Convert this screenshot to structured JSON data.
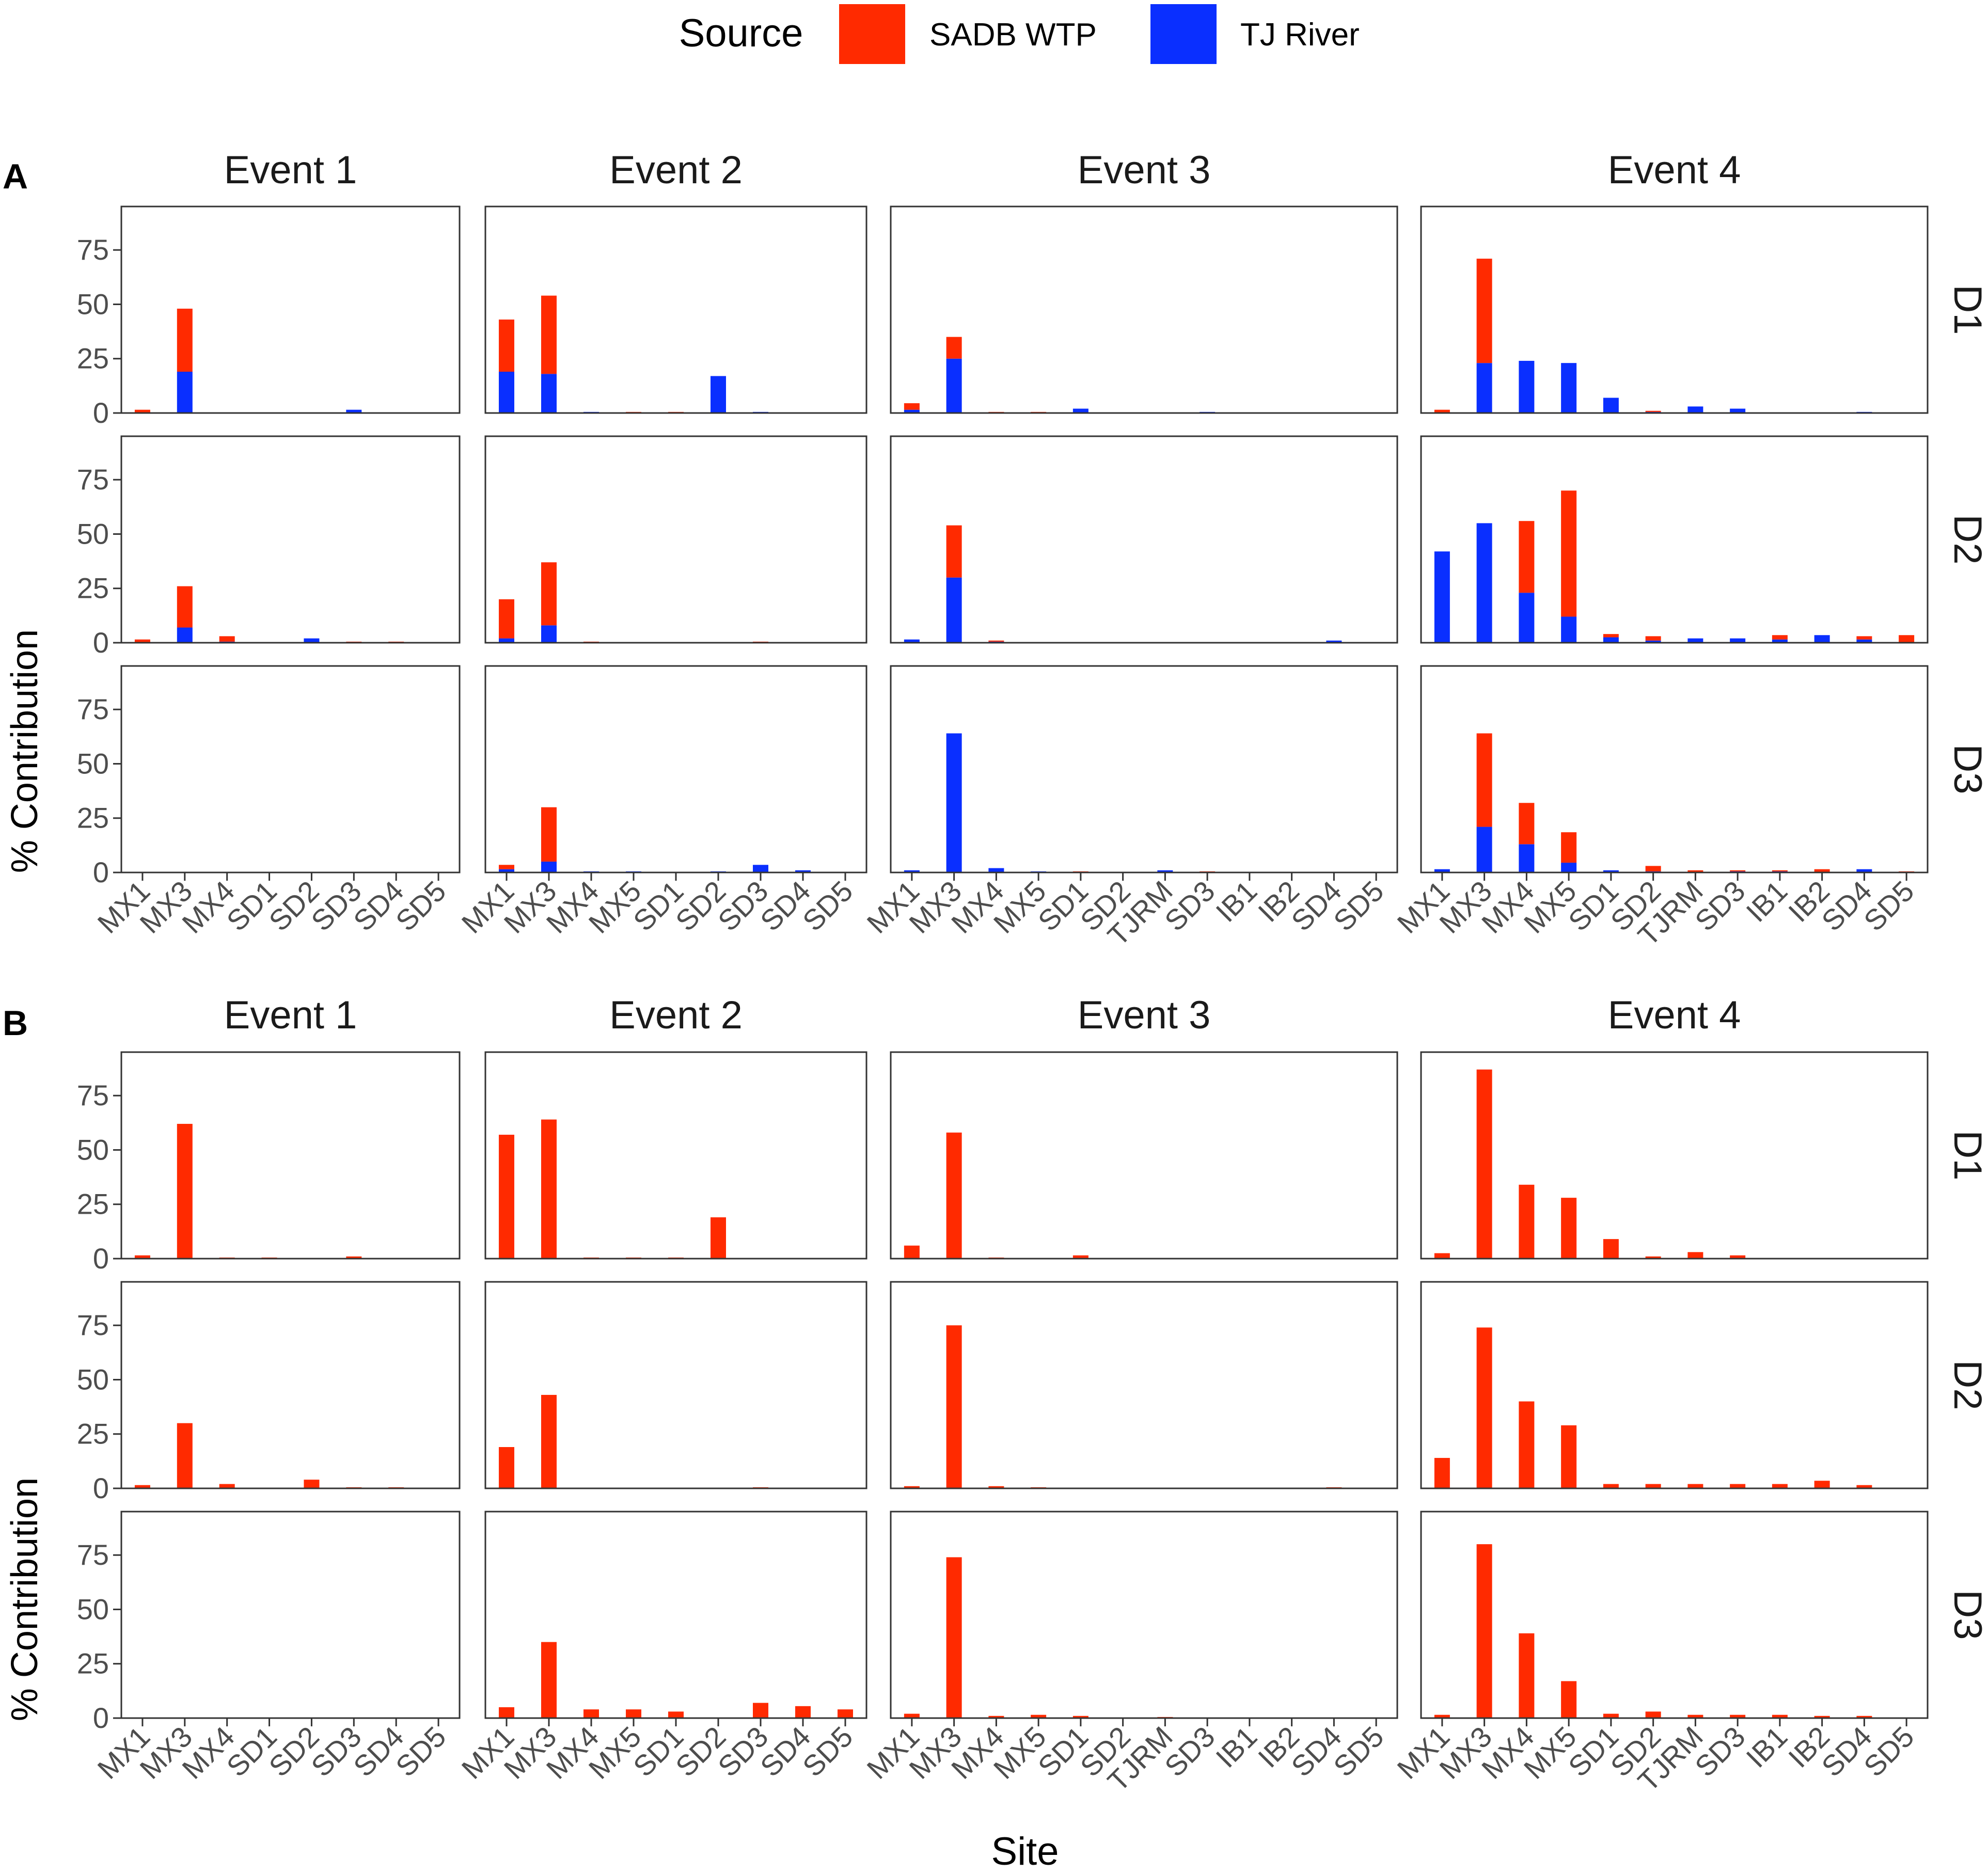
{
  "figure": {
    "legend": {
      "title": "Source",
      "position": "top-center"
    },
    "y_axis_label": "% Contribution",
    "x_axis_label": "Site",
    "panel_labels": [
      "A",
      "B"
    ],
    "events": [
      "Event 1",
      "Event 2",
      "Event 3",
      "Event 4"
    ],
    "depths": [
      "D1",
      "D2",
      "D3"
    ],
    "y_ticks": [
      "0",
      "25",
      "50",
      "75"
    ]
  },
  "chart_data": {
    "type": "bar",
    "stacked": true,
    "ylim": [
      0,
      95
    ],
    "series": [
      {
        "name": "SADB WTP",
        "color": "#ff2a00"
      },
      {
        "name": "TJ River",
        "color": "#0a2fff"
      }
    ],
    "site_sets": [
      [
        "MX1",
        "MX3",
        "MX4",
        "SD1",
        "SD2",
        "SD3",
        "SD4",
        "SD5"
      ],
      [
        "MX1",
        "MX3",
        "MX4",
        "MX5",
        "SD1",
        "SD2",
        "SD3",
        "SD4",
        "SD5"
      ],
      [
        "MX1",
        "MX3",
        "MX4",
        "MX5",
        "SD1",
        "SD2",
        "TJRM",
        "SD3",
        "IB1",
        "IB2",
        "SD4",
        "SD5"
      ],
      [
        "MX1",
        "MX3",
        "MX4",
        "MX5",
        "SD1",
        "SD2",
        "TJRM",
        "SD3",
        "IB1",
        "IB2",
        "SD4",
        "SD5"
      ]
    ],
    "panels": [
      {
        "label": "A",
        "facets": [
          [
            {
              "sadb": [
                1.5,
                29,
                0.3,
                0,
                0,
                0,
                0,
                0
              ],
              "tj": [
                0,
                19,
                0,
                0,
                0,
                1.5,
                0,
                0
              ]
            },
            {
              "sadb": [
                24,
                36,
                0,
                0.5,
                0.5,
                0,
                0,
                0,
                0
              ],
              "tj": [
                19,
                18,
                0.5,
                0,
                0,
                17,
                0.5,
                0,
                0
              ]
            },
            {
              "sadb": [
                3,
                10,
                0.5,
                0.5,
                0,
                0,
                0,
                0,
                0,
                0,
                0,
                0
              ],
              "tj": [
                1.5,
                25,
                0,
                0,
                2,
                0,
                0,
                0.5,
                0,
                0,
                0,
                0
              ]
            },
            {
              "sadb": [
                1.5,
                48,
                0,
                0,
                0,
                0.5,
                0,
                0,
                0.2,
                0.2,
                0,
                0
              ],
              "tj": [
                0,
                23,
                24,
                23,
                7,
                0.5,
                3,
                2,
                0,
                0,
                0.5,
                0
              ]
            }
          ],
          [
            {
              "sadb": [
                1.5,
                19,
                2.5,
                0,
                0,
                0.5,
                0.5,
                0
              ],
              "tj": [
                0,
                7,
                0.5,
                0,
                2,
                0,
                0,
                0
              ]
            },
            {
              "sadb": [
                18,
                29,
                0.5,
                0,
                0.2,
                0,
                0.5,
                0,
                0
              ],
              "tj": [
                2,
                8,
                0,
                0,
                0,
                0,
                0,
                0,
                0
              ]
            },
            {
              "sadb": [
                0,
                24,
                0.5,
                0.3,
                0,
                0,
                0,
                0,
                0,
                0,
                0,
                0
              ],
              "tj": [
                1.5,
                30,
                0.5,
                0,
                0,
                0,
                0,
                0,
                0,
                0,
                1,
                0
              ]
            },
            {
              "sadb": [
                0,
                0,
                33,
                58,
                1.5,
                2,
                0,
                0,
                2,
                0,
                1.5,
                3.5
              ],
              "tj": [
                42,
                55,
                23,
                12,
                2.5,
                1,
                2,
                2,
                1.5,
                3.5,
                1.5,
                0
              ]
            }
          ],
          [
            {
              "sadb": [
                0,
                0,
                0,
                0,
                0,
                0,
                0,
                0
              ],
              "tj": [
                0,
                0,
                0,
                0,
                0,
                0,
                0,
                0
              ]
            },
            {
              "sadb": [
                2,
                25,
                0,
                0,
                0.3,
                0,
                0,
                0,
                0
              ],
              "tj": [
                1.5,
                5,
                0.5,
                0.5,
                0,
                0.5,
                3.5,
                1,
                0
              ]
            },
            {
              "sadb": [
                0,
                0,
                0,
                0,
                0.5,
                0,
                0,
                0.5,
                0.2,
                0,
                0,
                0
              ],
              "tj": [
                1,
                64,
                2,
                0.5,
                0,
                0,
                1,
                0,
                0,
                0,
                0,
                0
              ]
            },
            {
              "sadb": [
                0,
                43,
                19,
                14,
                0,
                2.5,
                1,
                0.5,
                0.5,
                1.5,
                0,
                0.5
              ],
              "tj": [
                1.5,
                21,
                13,
                4.5,
                1,
                0.5,
                0,
                0.5,
                0.5,
                0,
                1.5,
                0
              ]
            }
          ]
        ]
      },
      {
        "label": "B",
        "facets": [
          [
            {
              "sadb": [
                1.5,
                62,
                0.5,
                0.5,
                0,
                1,
                0,
                0
              ],
              "tj": [
                0,
                0,
                0,
                0,
                0,
                0,
                0,
                0
              ]
            },
            {
              "sadb": [
                57,
                64,
                0.5,
                0.5,
                0.5,
                19,
                0,
                0,
                0
              ],
              "tj": [
                0,
                0,
                0,
                0,
                0,
                0,
                0,
                0,
                0
              ]
            },
            {
              "sadb": [
                6,
                58,
                0.5,
                0,
                1.5,
                0,
                0,
                0,
                0,
                0,
                0,
                0
              ],
              "tj": [
                0,
                0,
                0,
                0,
                0,
                0,
                0,
                0,
                0,
                0,
                0,
                0
              ]
            },
            {
              "sadb": [
                2.5,
                87,
                34,
                28,
                9,
                1,
                3,
                1.5,
                0.2,
                0.2,
                0.2,
                0
              ],
              "tj": [
                0,
                0,
                0,
                0,
                0,
                0,
                0,
                0,
                0,
                0,
                0,
                0
              ]
            }
          ],
          [
            {
              "sadb": [
                1.5,
                30,
                2,
                0,
                4,
                0.5,
                0.5,
                0
              ],
              "tj": [
                0,
                0,
                0,
                0,
                0,
                0,
                0,
                0
              ]
            },
            {
              "sadb": [
                19,
                43,
                0,
                0,
                0,
                0,
                0.5,
                0,
                0
              ],
              "tj": [
                0,
                0,
                0,
                0,
                0,
                0,
                0,
                0,
                0
              ]
            },
            {
              "sadb": [
                1,
                75,
                1,
                0.5,
                0,
                0,
                0,
                0,
                0,
                0,
                0.5,
                0
              ],
              "tj": [
                0,
                0,
                0,
                0,
                0,
                0,
                0,
                0,
                0,
                0,
                0,
                0
              ]
            },
            {
              "sadb": [
                14,
                74,
                40,
                29,
                2,
                2,
                2,
                2,
                2,
                3.5,
                1.5,
                0
              ],
              "tj": [
                0,
                0,
                0,
                0,
                0,
                0,
                0,
                0,
                0,
                0,
                0,
                0
              ]
            }
          ],
          [
            {
              "sadb": [
                0,
                0,
                0,
                0,
                0,
                0,
                0,
                0
              ],
              "tj": [
                0,
                0,
                0,
                0,
                0,
                0,
                0,
                0
              ]
            },
            {
              "sadb": [
                5,
                35,
                4,
                4,
                3,
                0,
                7,
                5.5,
                4
              ],
              "tj": [
                0,
                0,
                0,
                0,
                0,
                0,
                0,
                0,
                0
              ]
            },
            {
              "sadb": [
                2,
                74,
                1,
                1.5,
                1,
                0,
                0.5,
                0.3,
                0,
                0,
                0,
                0
              ],
              "tj": [
                0,
                0,
                0,
                0,
                0,
                0,
                0,
                0,
                0,
                0,
                0,
                0
              ]
            },
            {
              "sadb": [
                1.5,
                80,
                39,
                17,
                2,
                3,
                1.5,
                1.5,
                1.5,
                1,
                1,
                0.3
              ],
              "tj": [
                0,
                0,
                0,
                0,
                0,
                0,
                0,
                0,
                0,
                0,
                0,
                0
              ]
            }
          ]
        ]
      }
    ]
  }
}
